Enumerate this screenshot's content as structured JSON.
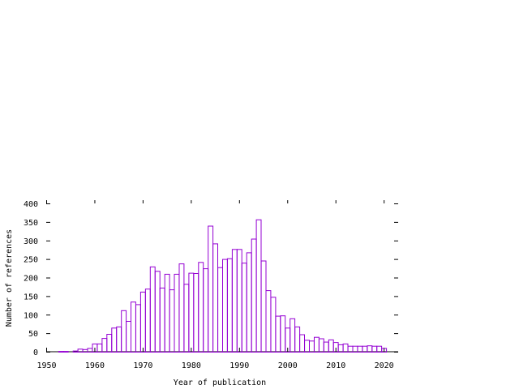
{
  "chart_data": {
    "type": "bar",
    "title": "",
    "xlabel": "Year of publication",
    "ylabel": "Number of references",
    "xlim": [
      1950,
      2023
    ],
    "ylim": [
      0,
      400
    ],
    "x_ticks": [
      "1950",
      "1960",
      "1970",
      "1980",
      "1990",
      "2000",
      "2010",
      "2020"
    ],
    "y_ticks": [
      "0",
      "50",
      "100",
      "150",
      "200",
      "250",
      "300",
      "350",
      "400"
    ],
    "grid": false,
    "legend": "none",
    "bar_color": "#9400d3",
    "x": [
      1953,
      1954,
      1955,
      1956,
      1957,
      1958,
      1959,
      1960,
      1961,
      1962,
      1963,
      1964,
      1965,
      1966,
      1967,
      1968,
      1969,
      1970,
      1971,
      1972,
      1973,
      1974,
      1975,
      1976,
      1977,
      1978,
      1979,
      1980,
      1981,
      1982,
      1983,
      1984,
      1985,
      1986,
      1987,
      1988,
      1989,
      1990,
      1991,
      1992,
      1993,
      1994,
      1995,
      1996,
      1997,
      1998,
      1999,
      2000,
      2001,
      2002,
      2003,
      2004,
      2005,
      2006,
      2007,
      2008,
      2009,
      2010,
      2011,
      2012,
      2013,
      2014,
      2015,
      2016,
      2017,
      2018,
      2019,
      2020,
      2021
    ],
    "values": [
      2,
      2,
      0,
      3,
      8,
      7,
      10,
      22,
      22,
      37,
      48,
      65,
      68,
      112,
      83,
      135,
      128,
      162,
      170,
      230,
      218,
      173,
      210,
      168,
      210,
      238,
      183,
      213,
      212,
      242,
      225,
      340,
      292,
      228,
      250,
      252,
      277,
      277,
      240,
      268,
      305,
      357,
      246,
      166,
      148,
      97,
      98,
      65,
      90,
      68,
      47,
      32,
      30,
      40,
      36,
      27,
      33,
      26,
      20,
      22,
      16,
      16,
      16,
      16,
      17,
      16,
      16,
      10,
      0
    ]
  }
}
